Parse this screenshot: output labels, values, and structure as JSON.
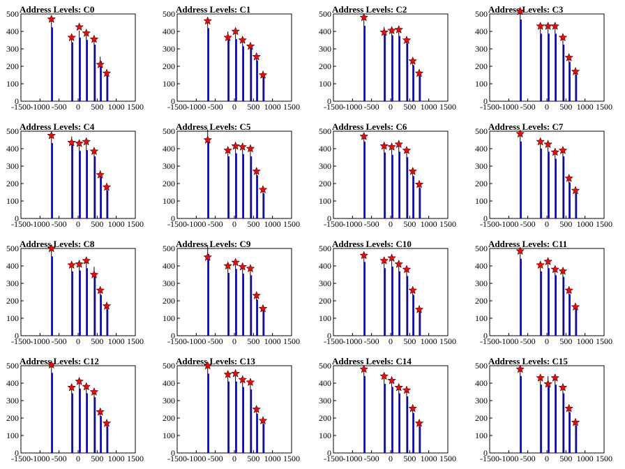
{
  "chart_data": [
    {
      "type": "bar",
      "title": "Address Levels: C0",
      "xlim": [
        -1500,
        1500
      ],
      "ylim": [
        0,
        500
      ],
      "xticks": [
        -1500,
        -1000,
        -500,
        0,
        500,
        1000,
        1500
      ],
      "yticks": [
        0,
        100,
        200,
        300,
        400,
        500
      ],
      "peaks": [
        {
          "x": -700,
          "y": 470,
          "star": 470
        },
        {
          "x": -170,
          "y": 375,
          "star": 365
        },
        {
          "x": 30,
          "y": 405,
          "star": 425
        },
        {
          "x": 215,
          "y": 390,
          "star": 390
        },
        {
          "x": 420,
          "y": 360,
          "star": 355
        },
        {
          "x": 580,
          "y": 255,
          "star": 210
        },
        {
          "x": 750,
          "y": 170,
          "star": 160
        }
      ]
    },
    {
      "type": "bar",
      "title": "Address Levels: C1",
      "xlim": [
        -1500,
        1500
      ],
      "ylim": [
        0,
        500
      ],
      "xticks": [
        -1500,
        -1000,
        -500,
        0,
        500,
        1000,
        1500
      ],
      "yticks": [
        0,
        100,
        200,
        300,
        400,
        500
      ],
      "peaks": [
        {
          "x": -700,
          "y": 465,
          "star": 460
        },
        {
          "x": -170,
          "y": 400,
          "star": 365
        },
        {
          "x": 30,
          "y": 395,
          "star": 400
        },
        {
          "x": 215,
          "y": 350,
          "star": 350
        },
        {
          "x": 420,
          "y": 335,
          "star": 315
        },
        {
          "x": 580,
          "y": 260,
          "star": 255
        },
        {
          "x": 750,
          "y": 155,
          "star": 150
        }
      ]
    },
    {
      "type": "bar",
      "title": "Address Levels: C2",
      "xlim": [
        -1500,
        1500
      ],
      "ylim": [
        0,
        500
      ],
      "xticks": [
        -1500,
        -1000,
        -500,
        0,
        500,
        1000,
        1500
      ],
      "yticks": [
        0,
        100,
        200,
        300,
        400,
        500
      ],
      "peaks": [
        {
          "x": -700,
          "y": 480,
          "star": 480
        },
        {
          "x": -170,
          "y": 425,
          "star": 395
        },
        {
          "x": 30,
          "y": 420,
          "star": 405
        },
        {
          "x": 215,
          "y": 415,
          "star": 410
        },
        {
          "x": 420,
          "y": 370,
          "star": 350
        },
        {
          "x": 580,
          "y": 230,
          "star": 230
        },
        {
          "x": 750,
          "y": 160,
          "star": 160
        }
      ]
    },
    {
      "type": "bar",
      "title": "Address Levels: C3",
      "xlim": [
        -1500,
        1500
      ],
      "ylim": [
        0,
        500
      ],
      "xticks": [
        -1500,
        -1000,
        -500,
        0,
        500,
        1000,
        1500
      ],
      "yticks": [
        0,
        100,
        200,
        300,
        400,
        500
      ],
      "peaks": [
        {
          "x": -700,
          "y": 520,
          "star": 515
        },
        {
          "x": -170,
          "y": 430,
          "star": 430
        },
        {
          "x": 30,
          "y": 430,
          "star": 430
        },
        {
          "x": 215,
          "y": 430,
          "star": 430
        },
        {
          "x": 420,
          "y": 360,
          "star": 365
        },
        {
          "x": 580,
          "y": 250,
          "star": 250
        },
        {
          "x": 750,
          "y": 170,
          "star": 170
        }
      ]
    },
    {
      "type": "bar",
      "title": "Address Levels: C4",
      "xlim": [
        -1500,
        1500
      ],
      "ylim": [
        0,
        500
      ],
      "xticks": [
        -1500,
        -1000,
        -500,
        0,
        500,
        1000,
        1500
      ],
      "yticks": [
        0,
        100,
        200,
        300,
        400,
        500
      ],
      "peaks": [
        {
          "x": -700,
          "y": 480,
          "star": 475
        },
        {
          "x": -170,
          "y": 470,
          "star": 435
        },
        {
          "x": 30,
          "y": 430,
          "star": 430
        },
        {
          "x": 215,
          "y": 435,
          "star": 440
        },
        {
          "x": 420,
          "y": 395,
          "star": 385
        },
        {
          "x": 580,
          "y": 275,
          "star": 250
        },
        {
          "x": 750,
          "y": 180,
          "star": 180
        }
      ]
    },
    {
      "type": "bar",
      "title": "Address Levels: C5",
      "xlim": [
        -1500,
        1500
      ],
      "ylim": [
        0,
        500
      ],
      "xticks": [
        -1500,
        -1000,
        -500,
        0,
        500,
        1000,
        1500
      ],
      "yticks": [
        0,
        100,
        200,
        300,
        400,
        500
      ],
      "peaks": [
        {
          "x": -700,
          "y": 510,
          "star": 450
        },
        {
          "x": -170,
          "y": 395,
          "star": 390
        },
        {
          "x": 30,
          "y": 415,
          "star": 415
        },
        {
          "x": 215,
          "y": 410,
          "star": 410
        },
        {
          "x": 420,
          "y": 395,
          "star": 400
        },
        {
          "x": 580,
          "y": 275,
          "star": 270
        },
        {
          "x": 750,
          "y": 160,
          "star": 165
        }
      ]
    },
    {
      "type": "bar",
      "title": "Address Levels: C6",
      "xlim": [
        -1500,
        1500
      ],
      "ylim": [
        0,
        500
      ],
      "xticks": [
        -1500,
        -1000,
        -500,
        0,
        500,
        1000,
        1500
      ],
      "yticks": [
        0,
        100,
        200,
        300,
        400,
        500
      ],
      "peaks": [
        {
          "x": -700,
          "y": 490,
          "star": 470
        },
        {
          "x": -170,
          "y": 420,
          "star": 415
        },
        {
          "x": 30,
          "y": 405,
          "star": 410
        },
        {
          "x": 215,
          "y": 425,
          "star": 425
        },
        {
          "x": 420,
          "y": 390,
          "star": 390
        },
        {
          "x": 580,
          "y": 270,
          "star": 270
        },
        {
          "x": 750,
          "y": 195,
          "star": 195
        }
      ]
    },
    {
      "type": "bar",
      "title": "Address Levels: C7",
      "xlim": [
        -1500,
        1500
      ],
      "ylim": [
        0,
        500
      ],
      "xticks": [
        -1500,
        -1000,
        -500,
        0,
        500,
        1000,
        1500
      ],
      "yticks": [
        0,
        100,
        200,
        300,
        400,
        500
      ],
      "peaks": [
        {
          "x": -700,
          "y": 490,
          "star": 485
        },
        {
          "x": -170,
          "y": 445,
          "star": 440
        },
        {
          "x": 30,
          "y": 425,
          "star": 425
        },
        {
          "x": 215,
          "y": 380,
          "star": 380
        },
        {
          "x": 420,
          "y": 395,
          "star": 390
        },
        {
          "x": 580,
          "y": 230,
          "star": 230
        },
        {
          "x": 750,
          "y": 160,
          "star": 160
        }
      ]
    },
    {
      "type": "bar",
      "title": "Address Levels: C8",
      "xlim": [
        -1500,
        1500
      ],
      "ylim": [
        0,
        500
      ],
      "xticks": [
        -1500,
        -1000,
        -500,
        0,
        500,
        1000,
        1500
      ],
      "yticks": [
        0,
        100,
        200,
        300,
        400,
        500
      ],
      "peaks": [
        {
          "x": -700,
          "y": 505,
          "star": 500
        },
        {
          "x": -170,
          "y": 410,
          "star": 405
        },
        {
          "x": 30,
          "y": 415,
          "star": 410
        },
        {
          "x": 215,
          "y": 430,
          "star": 430
        },
        {
          "x": 420,
          "y": 395,
          "star": 350
        },
        {
          "x": 580,
          "y": 260,
          "star": 260
        },
        {
          "x": 750,
          "y": 170,
          "star": 170
        }
      ]
    },
    {
      "type": "bar",
      "title": "Address Levels: C9",
      "xlim": [
        -1500,
        1500
      ],
      "ylim": [
        0,
        500
      ],
      "xticks": [
        -1500,
        -1000,
        -500,
        0,
        500,
        1000,
        1500
      ],
      "yticks": [
        0,
        100,
        200,
        300,
        400,
        500
      ],
      "peaks": [
        {
          "x": -700,
          "y": 520,
          "star": 450
        },
        {
          "x": -170,
          "y": 400,
          "star": 400
        },
        {
          "x": 30,
          "y": 425,
          "star": 420
        },
        {
          "x": 215,
          "y": 395,
          "star": 395
        },
        {
          "x": 420,
          "y": 385,
          "star": 385
        },
        {
          "x": 580,
          "y": 230,
          "star": 230
        },
        {
          "x": 750,
          "y": 160,
          "star": 155
        }
      ]
    },
    {
      "type": "bar",
      "title": "Address Levels: C10",
      "xlim": [
        -1500,
        1500
      ],
      "ylim": [
        0,
        500
      ],
      "xticks": [
        -1500,
        -1000,
        -500,
        0,
        500,
        1000,
        1500
      ],
      "yticks": [
        0,
        100,
        200,
        300,
        400,
        500
      ],
      "peaks": [
        {
          "x": -700,
          "y": 470,
          "star": 460
        },
        {
          "x": -170,
          "y": 430,
          "star": 430
        },
        {
          "x": 30,
          "y": 440,
          "star": 445
        },
        {
          "x": 215,
          "y": 410,
          "star": 410
        },
        {
          "x": 420,
          "y": 380,
          "star": 380
        },
        {
          "x": 580,
          "y": 260,
          "star": 260
        },
        {
          "x": 750,
          "y": 150,
          "star": 150
        }
      ]
    },
    {
      "type": "bar",
      "title": "Address Levels: C11",
      "xlim": [
        -1500,
        1500
      ],
      "ylim": [
        0,
        500
      ],
      "xticks": [
        -1500,
        -1000,
        -500,
        0,
        500,
        1000,
        1500
      ],
      "yticks": [
        0,
        100,
        200,
        300,
        400,
        500
      ],
      "peaks": [
        {
          "x": -700,
          "y": 490,
          "star": 485
        },
        {
          "x": -170,
          "y": 410,
          "star": 405
        },
        {
          "x": 30,
          "y": 430,
          "star": 425
        },
        {
          "x": 215,
          "y": 385,
          "star": 380
        },
        {
          "x": 420,
          "y": 375,
          "star": 370
        },
        {
          "x": 580,
          "y": 265,
          "star": 260
        },
        {
          "x": 750,
          "y": 170,
          "star": 165
        }
      ]
    },
    {
      "type": "bar",
      "title": "Address Levels: C12",
      "xlim": [
        -1500,
        1500
      ],
      "ylim": [
        0,
        500
      ],
      "xticks": [
        -1500,
        -1000,
        -500,
        0,
        500,
        1000,
        1500
      ],
      "yticks": [
        0,
        100,
        200,
        300,
        400,
        500
      ],
      "peaks": [
        {
          "x": -700,
          "y": 510,
          "star": 505
        },
        {
          "x": -170,
          "y": 380,
          "star": 375
        },
        {
          "x": 30,
          "y": 410,
          "star": 410
        },
        {
          "x": 215,
          "y": 380,
          "star": 380
        },
        {
          "x": 420,
          "y": 355,
          "star": 350
        },
        {
          "x": 580,
          "y": 235,
          "star": 235
        },
        {
          "x": 750,
          "y": 170,
          "star": 170
        }
      ]
    },
    {
      "type": "bar",
      "title": "Address Levels: C13",
      "xlim": [
        -1500,
        1500
      ],
      "ylim": [
        0,
        500
      ],
      "xticks": [
        -1500,
        -1000,
        -500,
        0,
        500,
        1000,
        1500
      ],
      "yticks": [
        0,
        100,
        200,
        300,
        400,
        500
      ],
      "peaks": [
        {
          "x": -700,
          "y": 505,
          "star": 500
        },
        {
          "x": -170,
          "y": 455,
          "star": 450
        },
        {
          "x": 30,
          "y": 455,
          "star": 455
        },
        {
          "x": 215,
          "y": 420,
          "star": 420
        },
        {
          "x": 420,
          "y": 405,
          "star": 405
        },
        {
          "x": 580,
          "y": 250,
          "star": 250
        },
        {
          "x": 750,
          "y": 185,
          "star": 185
        }
      ]
    },
    {
      "type": "bar",
      "title": "Address Levels: C14",
      "xlim": [
        -1500,
        1500
      ],
      "ylim": [
        0,
        500
      ],
      "xticks": [
        -1500,
        -1000,
        -500,
        0,
        500,
        1000,
        1500
      ],
      "yticks": [
        0,
        100,
        200,
        300,
        400,
        500
      ],
      "peaks": [
        {
          "x": -700,
          "y": 490,
          "star": 480
        },
        {
          "x": -170,
          "y": 440,
          "star": 440
        },
        {
          "x": 30,
          "y": 420,
          "star": 415
        },
        {
          "x": 215,
          "y": 380,
          "star": 375
        },
        {
          "x": 420,
          "y": 360,
          "star": 360
        },
        {
          "x": 580,
          "y": 255,
          "star": 255
        },
        {
          "x": 750,
          "y": 170,
          "star": 170
        }
      ]
    },
    {
      "type": "bar",
      "title": "Address Levels: C15",
      "xlim": [
        -1500,
        1500
      ],
      "ylim": [
        0,
        500
      ],
      "xticks": [
        -1500,
        -1000,
        -500,
        0,
        500,
        1000,
        1500
      ],
      "yticks": [
        0,
        100,
        200,
        300,
        400,
        500
      ],
      "peaks": [
        {
          "x": -700,
          "y": 490,
          "star": 480
        },
        {
          "x": -170,
          "y": 435,
          "star": 430
        },
        {
          "x": 30,
          "y": 440,
          "star": 395
        },
        {
          "x": 215,
          "y": 435,
          "star": 430
        },
        {
          "x": 420,
          "y": 380,
          "star": 375
        },
        {
          "x": 580,
          "y": 260,
          "star": 255
        },
        {
          "x": 750,
          "y": 175,
          "star": 175
        }
      ]
    }
  ],
  "colors": {
    "bar": "#0000ff",
    "axis": "#000000",
    "star_fill": "#ff0000",
    "star_stroke": "#000000"
  }
}
